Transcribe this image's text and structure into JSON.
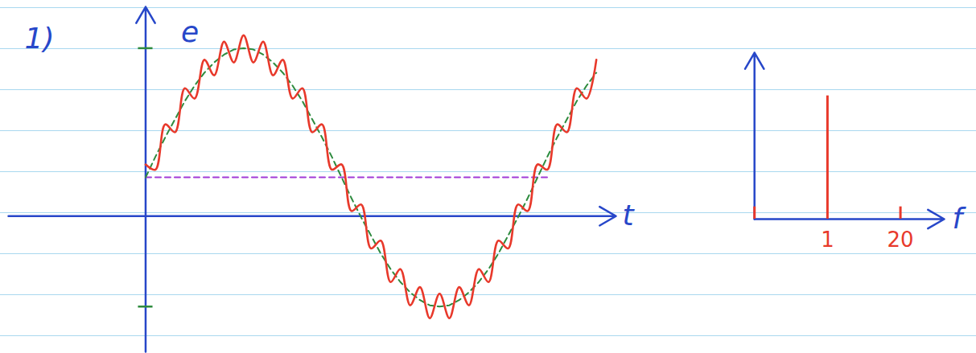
{
  "chart_data": [
    {
      "type": "line",
      "title": "1)",
      "xlabel": "t",
      "ylabel": "e",
      "x": [
        0,
        0.025,
        0.05,
        0.075,
        0.1,
        0.125,
        0.15,
        0.175,
        0.2,
        0.225,
        0.25,
        0.275,
        0.3,
        0.325,
        0.35,
        0.375,
        0.4,
        0.425,
        0.45,
        0.475,
        0.5,
        0.525,
        0.55,
        0.575,
        0.6,
        0.625,
        0.65,
        0.675,
        0.7,
        0.725,
        0.75,
        0.775,
        0.8,
        0.825,
        0.85,
        0.875,
        0.9,
        0.925,
        0.95,
        0.975,
        1,
        1.025,
        1.05,
        1.075,
        1.1,
        1.125,
        1.15
      ],
      "series": [
        {
          "color": "#e8392b",
          "line_style": "solid",
          "values": [
            0.4,
            0.36,
            0.71,
            0.65,
            0.99,
            0.91,
            1.21,
            1.09,
            1.35,
            1.19,
            1.4,
            1.19,
            1.35,
            1.09,
            1.21,
            0.91,
            0.99,
            0.65,
            0.71,
            0.36,
            0.4,
            0.04,
            0.09,
            -0.25,
            -0.19,
            -0.51,
            -0.41,
            -0.69,
            -0.55,
            -0.79,
            -0.6,
            -0.79,
            -0.55,
            -0.69,
            -0.41,
            -0.51,
            -0.19,
            -0.25,
            0.09,
            0.04,
            0.4,
            0.36,
            0.71,
            0.65,
            0.99,
            0.91,
            1.21
          ]
        },
        {
          "color": "#2e8b3e",
          "line_style": "dashed",
          "values": [
            0.3,
            0.46,
            0.61,
            0.75,
            0.89,
            1.01,
            1.11,
            1.19,
            1.25,
            1.29,
            1.3,
            1.29,
            1.25,
            1.19,
            1.11,
            1.01,
            0.89,
            0.75,
            0.61,
            0.46,
            0.3,
            0.14,
            -0.01,
            -0.15,
            -0.29,
            -0.41,
            -0.51,
            -0.59,
            -0.65,
            -0.69,
            -0.7,
            -0.69,
            -0.65,
            -0.59,
            -0.51,
            -0.41,
            -0.29,
            -0.15,
            -0.01,
            0.14,
            0.3,
            0.46,
            0.61,
            0.75,
            0.89,
            1.01,
            1.11
          ]
        },
        {
          "color": "#a23bd6",
          "line_style": "dashed",
          "values": [
            0.3,
            0.3,
            0.3,
            0.3,
            0.3,
            0.3,
            0.3,
            0.3,
            0.3,
            0.3,
            0.3,
            0.3,
            0.3,
            0.3,
            0.3,
            0.3,
            0.3,
            0.3,
            0.3,
            0.3,
            0.3,
            0.3,
            0.3,
            0.3,
            0.3,
            0.3,
            0.3,
            0.3,
            0.3,
            0.3,
            0.3,
            0.3,
            0.3,
            0.3,
            0.3,
            0.3,
            0.3,
            0.3,
            0.3,
            0.3,
            0.3,
            0.3,
            null,
            null,
            null,
            null,
            null
          ]
        }
      ],
      "xlim": [
        -0.35,
        1.2
      ],
      "ylim": [
        -1.05,
        1.62
      ],
      "yticks": [
        -0.7,
        1.3
      ],
      "tick_labels": false,
      "grid": false
    },
    {
      "type": "bar",
      "xlabel": "f",
      "categories": [
        null,
        "1",
        "20"
      ],
      "values": [
        0.1,
        1,
        0.1
      ],
      "color": "#e8392b",
      "ylim": [
        0,
        1.35
      ],
      "tick_labels": "x",
      "grid": false
    }
  ]
}
